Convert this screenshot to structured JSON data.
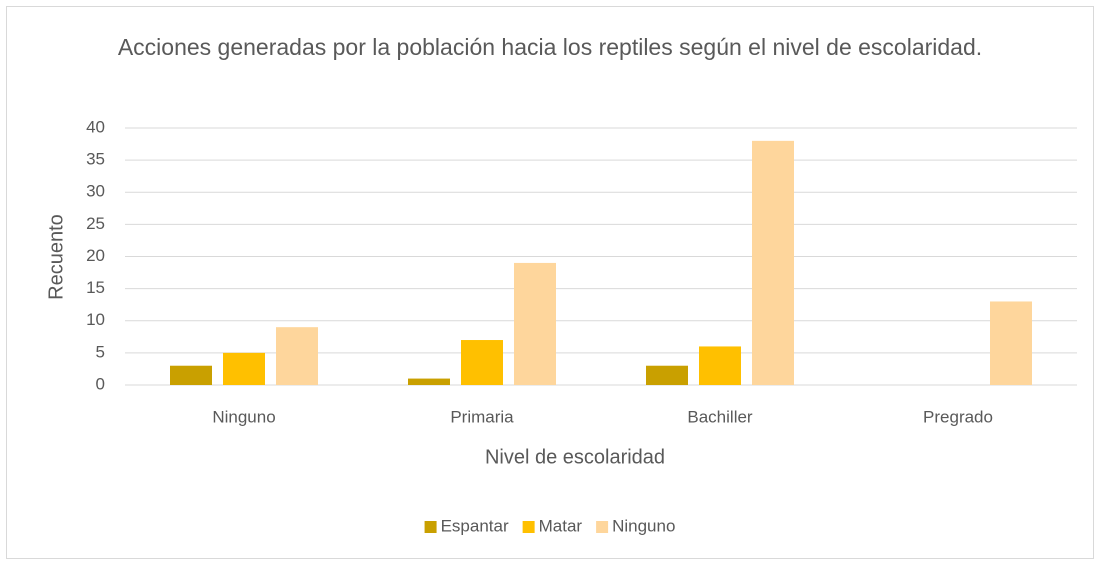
{
  "chart_data": {
    "type": "bar",
    "title": "Acciones generadas por la población hacia los reptiles según el nivel de escolaridad.",
    "x_label": "Nivel de escolaridad",
    "y_label": "Recuento",
    "categories": [
      "Ninguno",
      "Primaria",
      "Bachiller",
      "Pregrado"
    ],
    "series": [
      {
        "name": "Espantar",
        "color": "#c9a000",
        "values": [
          3,
          1,
          3,
          0
        ]
      },
      {
        "name": "Matar",
        "color": "#ffc000",
        "values": [
          5,
          7,
          6,
          0
        ]
      },
      {
        "name": "Ninguno",
        "color": "#fed69c",
        "values": [
          9,
          19,
          38,
          13
        ]
      }
    ],
    "ylim": [
      0,
      40
    ],
    "yticks": [
      0,
      5,
      10,
      15,
      20,
      25,
      30,
      35,
      40
    ],
    "grid": true,
    "legend": "bottom"
  }
}
